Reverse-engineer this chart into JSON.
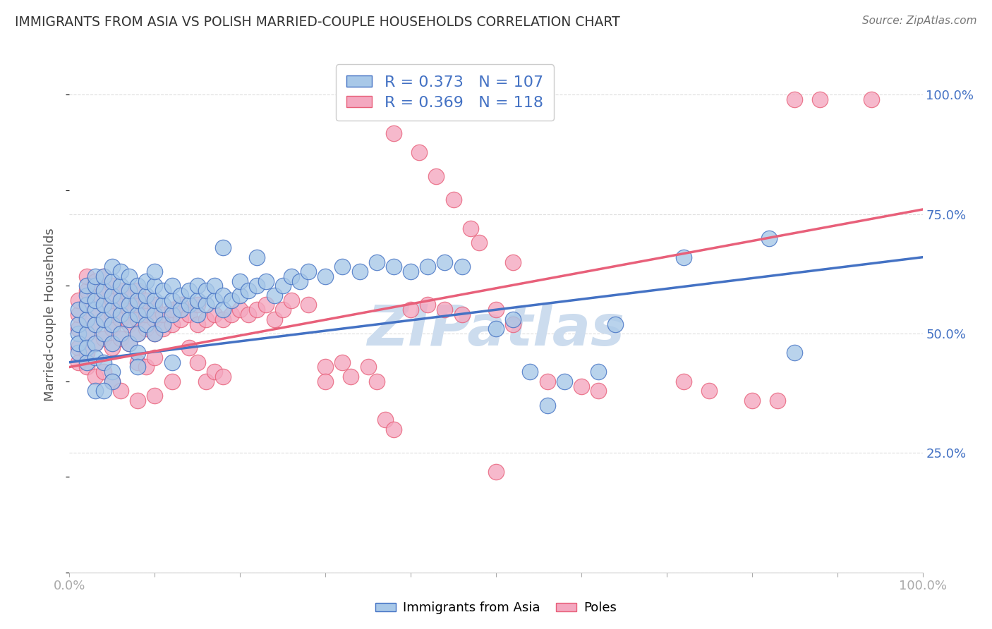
{
  "title": "IMMIGRANTS FROM ASIA VS POLISH MARRIED-COUPLE HOUSEHOLDS CORRELATION CHART",
  "source": "Source: ZipAtlas.com",
  "ylabel": "Married-couple Households",
  "xlabel": "",
  "legend_label_blue": "Immigrants from Asia",
  "legend_label_pink": "Poles",
  "R_blue": 0.373,
  "N_blue": 107,
  "R_pink": 0.369,
  "N_pink": 118,
  "blue_color": "#a8c8e8",
  "pink_color": "#f4a8c0",
  "blue_line_color": "#4472c4",
  "pink_line_color": "#e8607a",
  "title_color": "#333333",
  "source_color": "#777777",
  "watermark_color": "#ccdcee",
  "axis_label_color": "#555555",
  "tick_color_right": "#4472c4",
  "grid_color": "#dddddd",
  "legend_R_color": "#4472c4",
  "xlim": [
    0.0,
    1.0
  ],
  "ylim": [
    0.0,
    1.08
  ],
  "right_yticks": [
    0.25,
    0.5,
    0.75,
    1.0
  ],
  "right_yticklabels": [
    "25.0%",
    "50.0%",
    "75.0%",
    "100.0%"
  ],
  "xticks": [
    0.0,
    0.1,
    0.2,
    0.3,
    0.4,
    0.5,
    0.6,
    0.7,
    0.8,
    0.9,
    1.0
  ],
  "xticklabels": [
    "0.0%",
    "",
    "",
    "",
    "",
    "",
    "",
    "",
    "",
    "",
    "100.0%"
  ],
  "figsize": [
    14.06,
    8.92
  ],
  "dpi": 100,
  "blue_pts": [
    [
      0.01,
      0.46
    ],
    [
      0.01,
      0.5
    ],
    [
      0.01,
      0.52
    ],
    [
      0.01,
      0.55
    ],
    [
      0.01,
      0.48
    ],
    [
      0.02,
      0.44
    ],
    [
      0.02,
      0.5
    ],
    [
      0.02,
      0.53
    ],
    [
      0.02,
      0.56
    ],
    [
      0.02,
      0.58
    ],
    [
      0.02,
      0.6
    ],
    [
      0.02,
      0.47
    ],
    [
      0.03,
      0.48
    ],
    [
      0.03,
      0.52
    ],
    [
      0.03,
      0.55
    ],
    [
      0.03,
      0.57
    ],
    [
      0.03,
      0.6
    ],
    [
      0.03,
      0.62
    ],
    [
      0.03,
      0.45
    ],
    [
      0.04,
      0.5
    ],
    [
      0.04,
      0.53
    ],
    [
      0.04,
      0.56
    ],
    [
      0.04,
      0.59
    ],
    [
      0.04,
      0.62
    ],
    [
      0.04,
      0.44
    ],
    [
      0.05,
      0.48
    ],
    [
      0.05,
      0.52
    ],
    [
      0.05,
      0.55
    ],
    [
      0.05,
      0.58
    ],
    [
      0.05,
      0.61
    ],
    [
      0.05,
      0.64
    ],
    [
      0.05,
      0.42
    ],
    [
      0.06,
      0.5
    ],
    [
      0.06,
      0.54
    ],
    [
      0.06,
      0.57
    ],
    [
      0.06,
      0.6
    ],
    [
      0.06,
      0.63
    ],
    [
      0.07,
      0.48
    ],
    [
      0.07,
      0.53
    ],
    [
      0.07,
      0.56
    ],
    [
      0.07,
      0.59
    ],
    [
      0.07,
      0.62
    ],
    [
      0.08,
      0.5
    ],
    [
      0.08,
      0.54
    ],
    [
      0.08,
      0.57
    ],
    [
      0.08,
      0.6
    ],
    [
      0.08,
      0.46
    ],
    [
      0.09,
      0.52
    ],
    [
      0.09,
      0.55
    ],
    [
      0.09,
      0.58
    ],
    [
      0.09,
      0.61
    ],
    [
      0.1,
      0.5
    ],
    [
      0.1,
      0.54
    ],
    [
      0.1,
      0.57
    ],
    [
      0.1,
      0.6
    ],
    [
      0.1,
      0.63
    ],
    [
      0.11,
      0.52
    ],
    [
      0.11,
      0.56
    ],
    [
      0.11,
      0.59
    ],
    [
      0.12,
      0.54
    ],
    [
      0.12,
      0.57
    ],
    [
      0.12,
      0.6
    ],
    [
      0.13,
      0.55
    ],
    [
      0.13,
      0.58
    ],
    [
      0.14,
      0.56
    ],
    [
      0.14,
      0.59
    ],
    [
      0.15,
      0.54
    ],
    [
      0.15,
      0.57
    ],
    [
      0.15,
      0.6
    ],
    [
      0.16,
      0.56
    ],
    [
      0.16,
      0.59
    ],
    [
      0.17,
      0.57
    ],
    [
      0.17,
      0.6
    ],
    [
      0.18,
      0.58
    ],
    [
      0.18,
      0.55
    ],
    [
      0.19,
      0.57
    ],
    [
      0.2,
      0.58
    ],
    [
      0.2,
      0.61
    ],
    [
      0.21,
      0.59
    ],
    [
      0.22,
      0.6
    ],
    [
      0.23,
      0.61
    ],
    [
      0.24,
      0.58
    ],
    [
      0.25,
      0.6
    ],
    [
      0.26,
      0.62
    ],
    [
      0.27,
      0.61
    ],
    [
      0.28,
      0.63
    ],
    [
      0.3,
      0.62
    ],
    [
      0.32,
      0.64
    ],
    [
      0.34,
      0.63
    ],
    [
      0.36,
      0.65
    ],
    [
      0.38,
      0.64
    ],
    [
      0.4,
      0.63
    ],
    [
      0.42,
      0.64
    ],
    [
      0.44,
      0.65
    ],
    [
      0.46,
      0.64
    ],
    [
      0.5,
      0.51
    ],
    [
      0.52,
      0.53
    ],
    [
      0.54,
      0.42
    ],
    [
      0.56,
      0.35
    ],
    [
      0.58,
      0.4
    ],
    [
      0.62,
      0.42
    ],
    [
      0.64,
      0.52
    ],
    [
      0.72,
      0.66
    ],
    [
      0.82,
      0.7
    ],
    [
      0.85,
      0.46
    ],
    [
      0.12,
      0.44
    ],
    [
      0.08,
      0.43
    ],
    [
      0.05,
      0.4
    ],
    [
      0.03,
      0.38
    ],
    [
      0.04,
      0.38
    ],
    [
      0.22,
      0.66
    ],
    [
      0.18,
      0.68
    ]
  ],
  "pink_pts": [
    [
      0.01,
      0.47
    ],
    [
      0.01,
      0.51
    ],
    [
      0.01,
      0.54
    ],
    [
      0.01,
      0.57
    ],
    [
      0.01,
      0.44
    ],
    [
      0.02,
      0.46
    ],
    [
      0.02,
      0.5
    ],
    [
      0.02,
      0.53
    ],
    [
      0.02,
      0.56
    ],
    [
      0.02,
      0.59
    ],
    [
      0.02,
      0.62
    ],
    [
      0.02,
      0.43
    ],
    [
      0.03,
      0.48
    ],
    [
      0.03,
      0.52
    ],
    [
      0.03,
      0.55
    ],
    [
      0.03,
      0.58
    ],
    [
      0.03,
      0.61
    ],
    [
      0.03,
      0.41
    ],
    [
      0.04,
      0.49
    ],
    [
      0.04,
      0.53
    ],
    [
      0.04,
      0.56
    ],
    [
      0.04,
      0.59
    ],
    [
      0.04,
      0.62
    ],
    [
      0.04,
      0.42
    ],
    [
      0.05,
      0.47
    ],
    [
      0.05,
      0.51
    ],
    [
      0.05,
      0.54
    ],
    [
      0.05,
      0.57
    ],
    [
      0.05,
      0.6
    ],
    [
      0.05,
      0.4
    ],
    [
      0.06,
      0.49
    ],
    [
      0.06,
      0.53
    ],
    [
      0.06,
      0.56
    ],
    [
      0.06,
      0.59
    ],
    [
      0.06,
      0.38
    ],
    [
      0.07,
      0.48
    ],
    [
      0.07,
      0.52
    ],
    [
      0.07,
      0.55
    ],
    [
      0.07,
      0.58
    ],
    [
      0.08,
      0.5
    ],
    [
      0.08,
      0.53
    ],
    [
      0.08,
      0.56
    ],
    [
      0.08,
      0.59
    ],
    [
      0.08,
      0.44
    ],
    [
      0.09,
      0.51
    ],
    [
      0.09,
      0.54
    ],
    [
      0.09,
      0.57
    ],
    [
      0.09,
      0.43
    ],
    [
      0.1,
      0.5
    ],
    [
      0.1,
      0.53
    ],
    [
      0.1,
      0.56
    ],
    [
      0.1,
      0.45
    ],
    [
      0.11,
      0.51
    ],
    [
      0.11,
      0.54
    ],
    [
      0.12,
      0.52
    ],
    [
      0.12,
      0.55
    ],
    [
      0.13,
      0.53
    ],
    [
      0.13,
      0.56
    ],
    [
      0.14,
      0.54
    ],
    [
      0.14,
      0.47
    ],
    [
      0.15,
      0.52
    ],
    [
      0.15,
      0.56
    ],
    [
      0.15,
      0.44
    ],
    [
      0.16,
      0.53
    ],
    [
      0.16,
      0.4
    ],
    [
      0.17,
      0.54
    ],
    [
      0.17,
      0.42
    ],
    [
      0.18,
      0.53
    ],
    [
      0.18,
      0.41
    ],
    [
      0.19,
      0.54
    ],
    [
      0.2,
      0.55
    ],
    [
      0.21,
      0.54
    ],
    [
      0.22,
      0.55
    ],
    [
      0.23,
      0.56
    ],
    [
      0.24,
      0.53
    ],
    [
      0.25,
      0.55
    ],
    [
      0.26,
      0.57
    ],
    [
      0.28,
      0.56
    ],
    [
      0.3,
      0.43
    ],
    [
      0.3,
      0.4
    ],
    [
      0.32,
      0.44
    ],
    [
      0.33,
      0.41
    ],
    [
      0.35,
      0.43
    ],
    [
      0.36,
      0.4
    ],
    [
      0.37,
      0.32
    ],
    [
      0.38,
      0.3
    ],
    [
      0.4,
      0.55
    ],
    [
      0.42,
      0.56
    ],
    [
      0.44,
      0.55
    ],
    [
      0.46,
      0.54
    ],
    [
      0.5,
      0.55
    ],
    [
      0.52,
      0.52
    ],
    [
      0.56,
      0.4
    ],
    [
      0.6,
      0.39
    ],
    [
      0.62,
      0.38
    ],
    [
      0.38,
      0.92
    ],
    [
      0.4,
      0.97
    ],
    [
      0.41,
      0.88
    ],
    [
      0.43,
      0.83
    ],
    [
      0.45,
      0.78
    ],
    [
      0.47,
      0.72
    ],
    [
      0.48,
      0.69
    ],
    [
      0.43,
      0.97
    ],
    [
      0.52,
      0.65
    ],
    [
      0.72,
      0.4
    ],
    [
      0.75,
      0.38
    ],
    [
      0.8,
      0.36
    ],
    [
      0.83,
      0.36
    ],
    [
      0.5,
      0.21
    ],
    [
      0.85,
      0.99
    ],
    [
      0.88,
      0.99
    ],
    [
      0.94,
      0.99
    ],
    [
      0.1,
      0.37
    ],
    [
      0.12,
      0.4
    ],
    [
      0.08,
      0.36
    ]
  ],
  "blue_line": [
    [
      0.0,
      0.44
    ],
    [
      1.0,
      0.66
    ]
  ],
  "pink_line": [
    [
      0.0,
      0.43
    ],
    [
      1.0,
      0.76
    ]
  ]
}
